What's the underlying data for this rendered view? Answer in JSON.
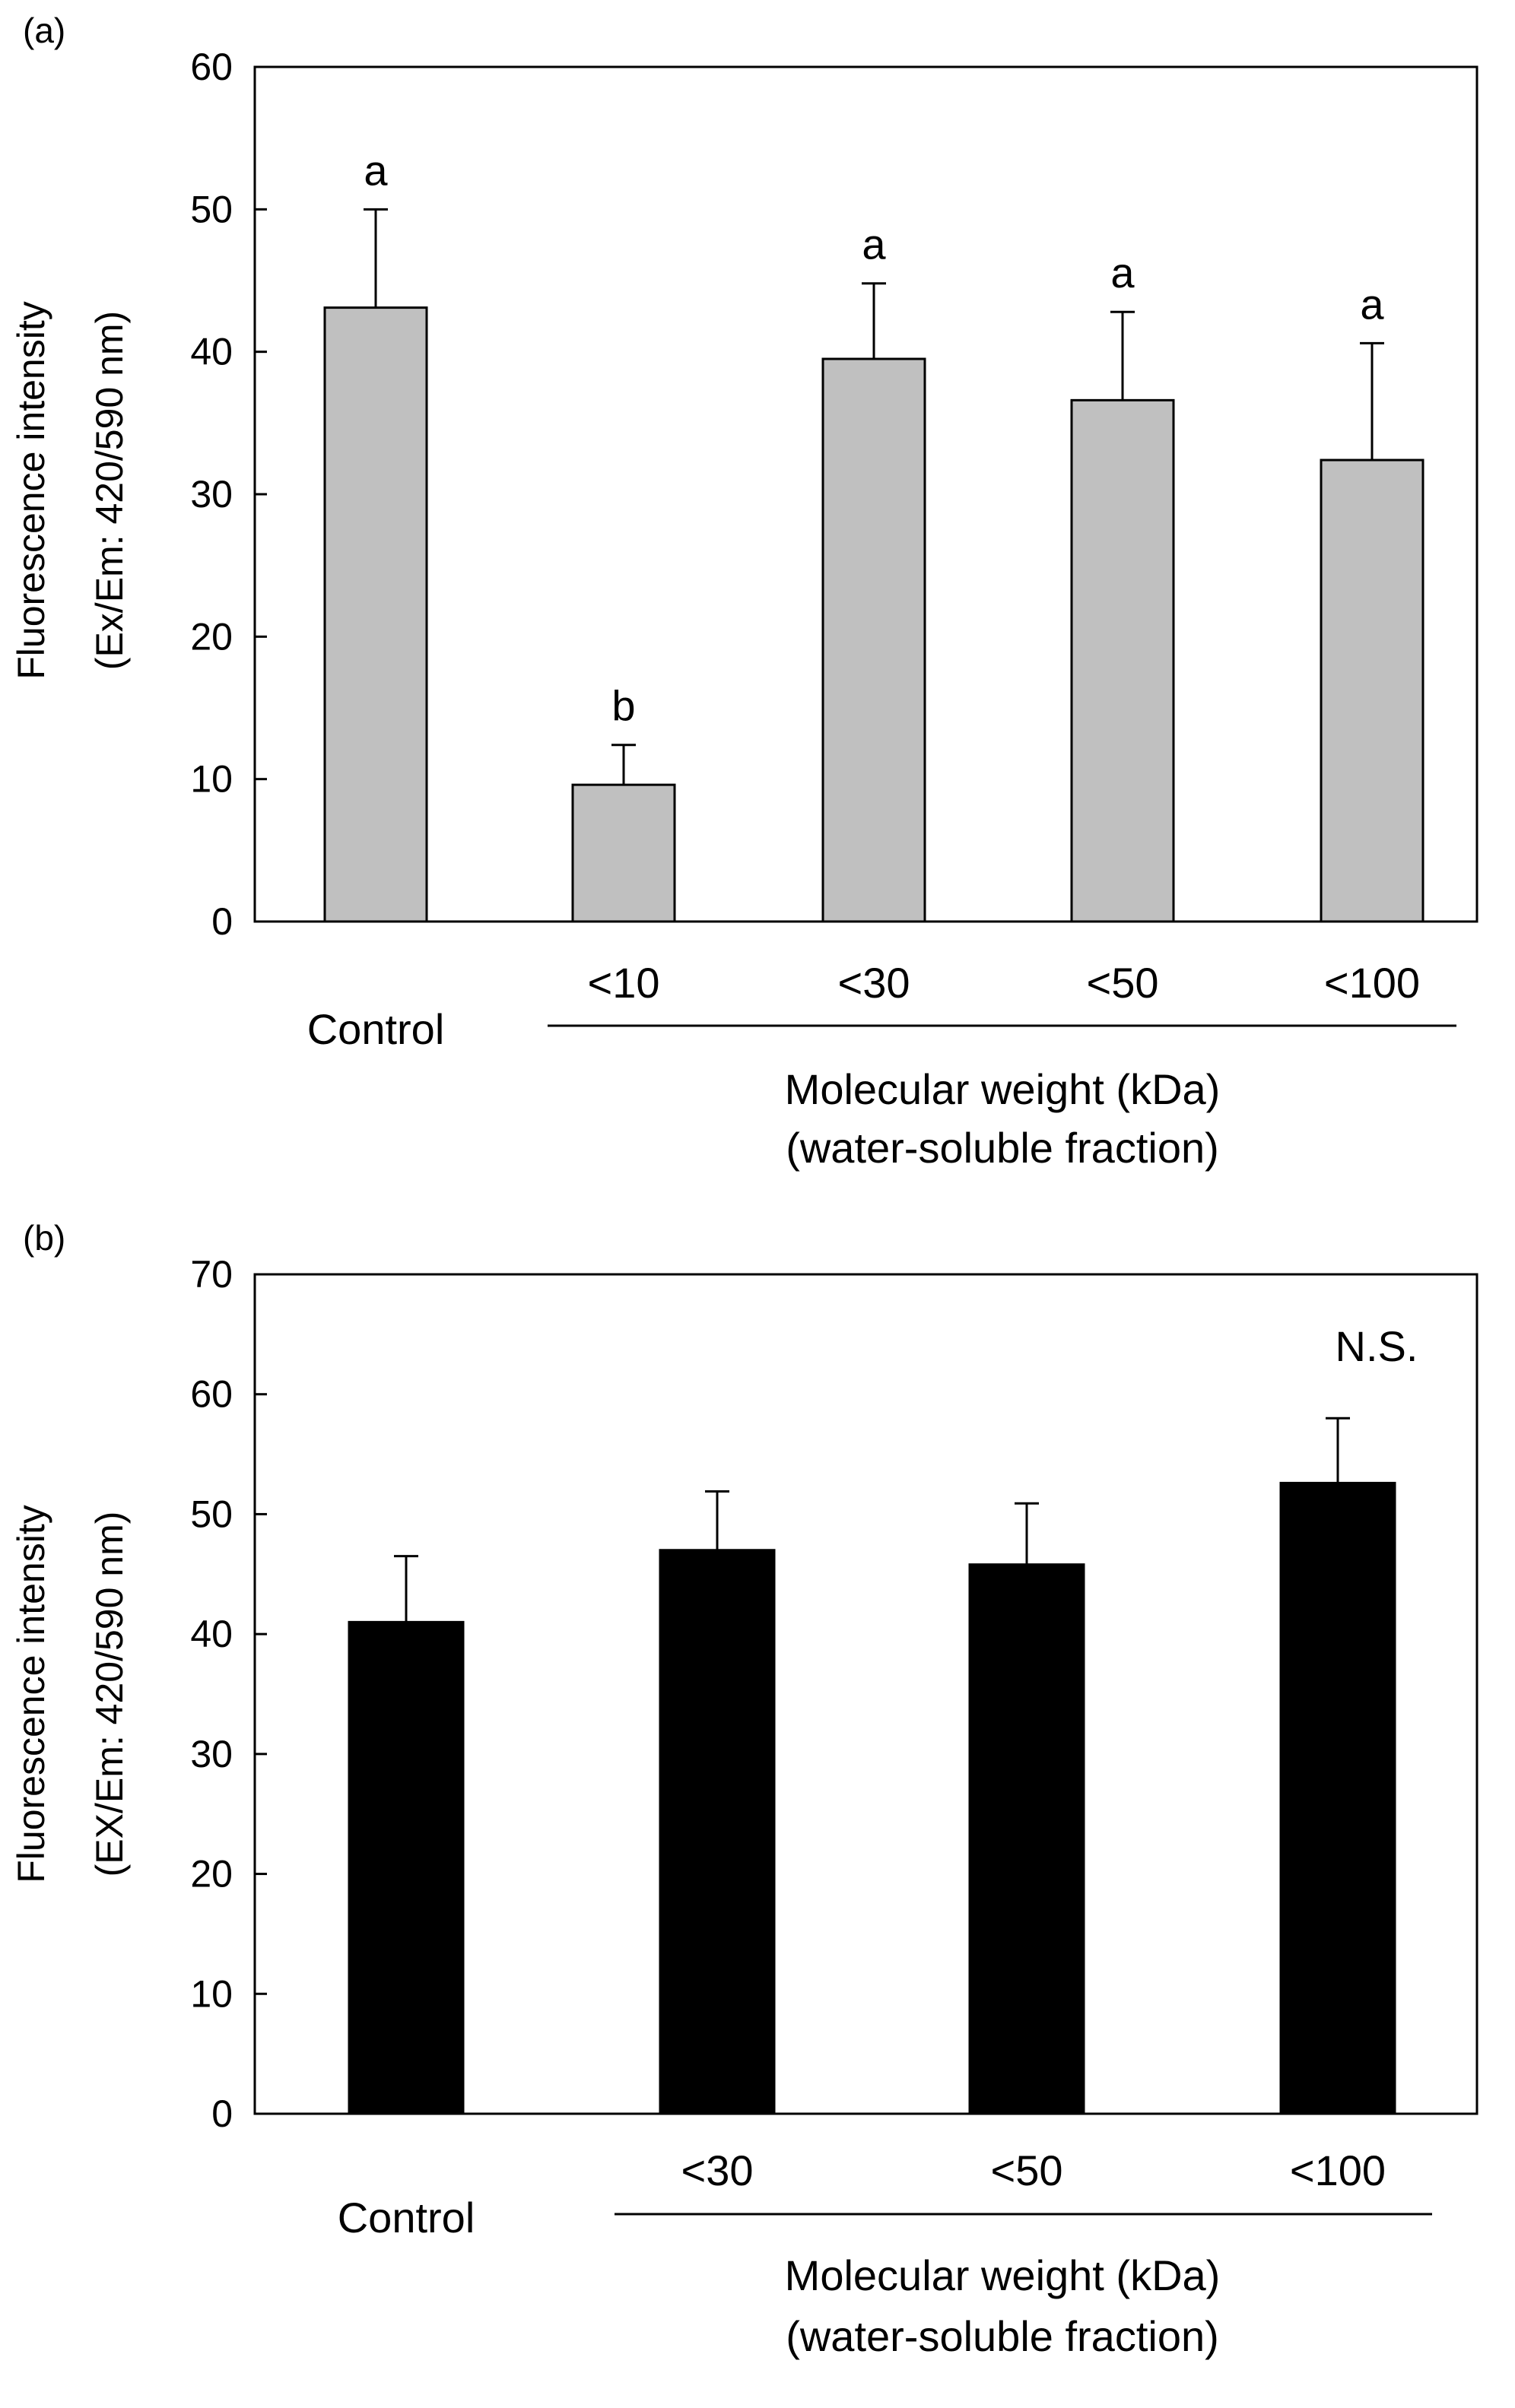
{
  "chart_data": [
    {
      "panel_label": "(a)",
      "type": "bar",
      "categories": [
        "Control",
        "<10",
        "<30",
        "<50",
        "<100"
      ],
      "values": [
        43.1,
        9.6,
        39.5,
        36.6,
        32.4
      ],
      "errors": [
        6.9,
        2.8,
        5.3,
        6.2,
        8.2
      ],
      "significance": [
        "a",
        "b",
        "a",
        "a",
        "a"
      ],
      "ylabel_lines": [
        "Fluorescence intensity",
        "(Ex/Em: 420/590 nm)"
      ],
      "xlabel_lines": [
        "Molecular weight (kDa)",
        "(water-soluble fraction)"
      ],
      "ylim": [
        0,
        60
      ],
      "yticks": [
        0,
        10,
        20,
        30,
        40,
        50,
        60
      ],
      "bar_color": "#c0c0c0",
      "note": ""
    },
    {
      "panel_label": "(b)",
      "type": "bar",
      "categories": [
        "Control",
        "<30",
        "<50",
        "<100"
      ],
      "values": [
        41.0,
        47.0,
        45.8,
        52.6
      ],
      "errors": [
        5.5,
        4.9,
        5.1,
        5.4
      ],
      "significance": [
        "",
        "",
        "",
        ""
      ],
      "ylabel_lines": [
        "Fluorescence intensity",
        "(EX/Em: 420/590 nm)"
      ],
      "xlabel_lines": [
        "Molecular weight (kDa)",
        "(water-soluble fraction)"
      ],
      "ylim": [
        0,
        70
      ],
      "yticks": [
        0,
        10,
        20,
        30,
        40,
        50,
        60,
        70
      ],
      "bar_color": "#000000",
      "note": "N.S."
    }
  ]
}
